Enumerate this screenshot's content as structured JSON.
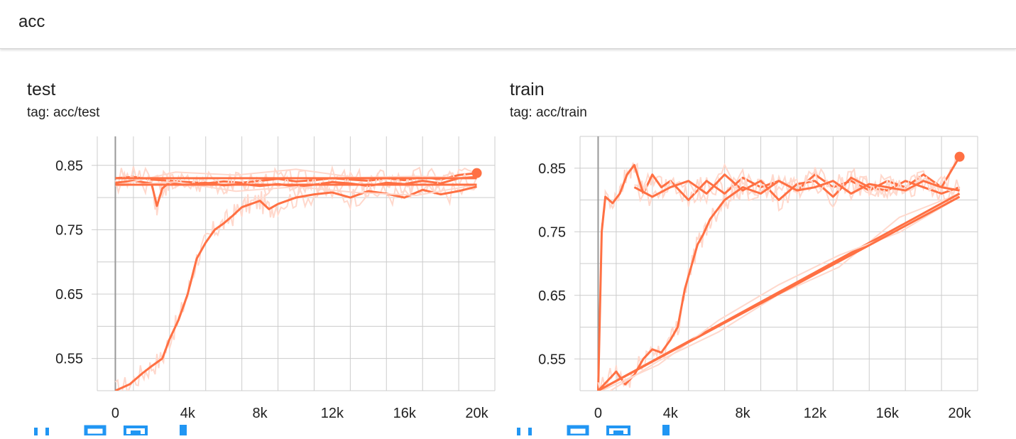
{
  "group": {
    "title": "acc"
  },
  "colors": {
    "series": "#ff7043",
    "series_raw": "#ffd8cc",
    "grid": "#cccccc",
    "zero_axis": "#999999",
    "toolbar": "#2196f3"
  },
  "toolbar_icons": [
    "expand-icon",
    "data-download-icon",
    "fit-domain-icon"
  ],
  "chart_data": [
    {
      "type": "line",
      "title": "test",
      "subtitle": "tag: acc/test",
      "xlim": [
        -1000,
        21000
      ],
      "ylim": [
        0.5,
        0.895
      ],
      "x_ticks": [
        0,
        4000,
        8000,
        12000,
        16000,
        20000
      ],
      "x_tick_labels": [
        "0",
        "4k",
        "8k",
        "12k",
        "16k",
        "20k"
      ],
      "y_ticks": [
        0.55,
        0.65,
        0.75,
        0.85
      ],
      "y_tick_labels": [
        "0.55",
        "0.65",
        "0.75",
        "0.85"
      ],
      "grid": true,
      "legend": "none",
      "series": [
        {
          "x": [
            0,
            1000,
            2000,
            3000,
            4000,
            5000,
            6000,
            7000,
            8000,
            9000,
            10000,
            11000,
            12000,
            13000,
            14000,
            15000,
            16000,
            17000,
            18000,
            19000,
            20000
          ],
          "y": [
            0.83,
            0.832,
            0.828,
            0.826,
            0.824,
            0.822,
            0.825,
            0.823,
            0.826,
            0.829,
            0.825,
            0.827,
            0.83,
            0.828,
            0.826,
            0.83,
            0.827,
            0.832,
            0.828,
            0.835,
            0.838
          ]
        },
        {
          "x": [
            0,
            1000,
            2000,
            2300,
            2600,
            3000,
            4000,
            5000,
            6000,
            7000,
            8000,
            9000,
            10000,
            11000,
            12000,
            13000,
            14000,
            15000,
            16000,
            17000,
            18000,
            19000,
            20000
          ],
          "y": [
            0.823,
            0.826,
            0.822,
            0.787,
            0.814,
            0.824,
            0.82,
            0.823,
            0.819,
            0.821,
            0.818,
            0.821,
            0.817,
            0.82,
            0.824,
            0.822,
            0.818,
            0.823,
            0.821,
            0.826,
            0.822,
            0.83,
            0.832
          ]
        },
        {
          "x": [
            0,
            800,
            1500,
            2000,
            2600,
            3000,
            3500,
            4000,
            4500,
            5000,
            5500,
            6000,
            6500,
            7000,
            7500,
            8000,
            8500,
            9000,
            10000,
            11000,
            12000,
            13000,
            14000,
            15000,
            16000,
            17000,
            18000,
            19000,
            20000
          ],
          "y": [
            0.5,
            0.51,
            0.527,
            0.538,
            0.55,
            0.58,
            0.61,
            0.65,
            0.705,
            0.73,
            0.75,
            0.76,
            0.772,
            0.785,
            0.79,
            0.795,
            0.782,
            0.79,
            0.8,
            0.805,
            0.808,
            0.8,
            0.81,
            0.806,
            0.8,
            0.812,
            0.805,
            0.81,
            0.817
          ]
        },
        {
          "x": [
            0,
            20000
          ],
          "y": [
            0.83,
            0.83
          ]
        },
        {
          "x": [
            0,
            20000
          ],
          "y": [
            0.82,
            0.82
          ]
        }
      ]
    },
    {
      "type": "line",
      "title": "train",
      "subtitle": "tag: acc/train",
      "xlim": [
        -1000,
        21000
      ],
      "ylim": [
        0.5,
        0.9
      ],
      "x_ticks": [
        0,
        4000,
        8000,
        12000,
        16000,
        20000
      ],
      "x_tick_labels": [
        "0",
        "4k",
        "8k",
        "12k",
        "16k",
        "20k"
      ],
      "y_ticks": [
        0.55,
        0.65,
        0.75,
        0.85
      ],
      "y_tick_labels": [
        "0.55",
        "0.65",
        "0.75",
        "0.85"
      ],
      "grid": true,
      "legend": "none",
      "series": [
        {
          "x": [
            0,
            200,
            400,
            800,
            1200,
            1600,
            2000,
            2500,
            3000,
            3500,
            4000,
            5000,
            6000,
            7000,
            8000,
            9000,
            10000,
            11000,
            12000,
            13000,
            14000,
            15000,
            16000,
            17000,
            18000,
            19000,
            20000
          ],
          "y": [
            0.5,
            0.75,
            0.805,
            0.795,
            0.81,
            0.84,
            0.855,
            0.81,
            0.84,
            0.82,
            0.83,
            0.8,
            0.83,
            0.81,
            0.835,
            0.82,
            0.83,
            0.815,
            0.84,
            0.82,
            0.83,
            0.815,
            0.83,
            0.82,
            0.84,
            0.82,
            0.868
          ]
        },
        {
          "x": [
            2000,
            3000,
            4000,
            5000,
            6000,
            7000,
            8000,
            9000,
            10000,
            11000,
            12000,
            13000,
            14000,
            15000,
            16000,
            17000,
            18000,
            19000,
            20000
          ],
          "y": [
            0.82,
            0.805,
            0.82,
            0.83,
            0.81,
            0.84,
            0.815,
            0.83,
            0.8,
            0.825,
            0.83,
            0.805,
            0.835,
            0.82,
            0.815,
            0.83,
            0.82,
            0.81,
            0.82
          ]
        },
        {
          "x": [
            0,
            500,
            1000,
            1500,
            2000,
            2500,
            3000,
            3500,
            4000,
            4400,
            4800,
            5200,
            5500,
            5800,
            6200,
            6600,
            7000,
            7500,
            8000,
            9000,
            10000,
            11000,
            12000,
            13000,
            14000,
            15000,
            16000,
            17000,
            18000,
            19000,
            20000
          ],
          "y": [
            0.5,
            0.515,
            0.53,
            0.51,
            0.525,
            0.55,
            0.565,
            0.56,
            0.58,
            0.6,
            0.66,
            0.7,
            0.73,
            0.745,
            0.77,
            0.785,
            0.8,
            0.81,
            0.82,
            0.81,
            0.83,
            0.815,
            0.82,
            0.83,
            0.81,
            0.825,
            0.82,
            0.815,
            0.83,
            0.82,
            0.815
          ]
        },
        {
          "x": [
            0,
            20000
          ],
          "y": [
            0.5,
            0.81
          ]
        },
        {
          "x": [
            0,
            20000
          ],
          "y": [
            0.5,
            0.805
          ]
        }
      ]
    }
  ]
}
